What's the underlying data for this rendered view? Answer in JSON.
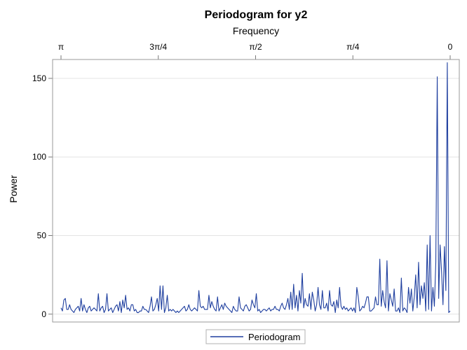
{
  "chart_data": {
    "type": "line",
    "title": "Periodogram for y2",
    "xlabel": "Frequency",
    "ylabel": "Power",
    "x_ticks": [
      "π",
      "3π/4",
      "π/2",
      "π/4",
      "0"
    ],
    "x_tick_values": [
      3.14159,
      2.35619,
      1.5708,
      0.7854,
      0
    ],
    "xlim": [
      3.14159,
      0
    ],
    "y_ticks": [
      0,
      50,
      100,
      150
    ],
    "ylim": [
      -5,
      162
    ],
    "x_axis_position": "top",
    "grid": "horizontal",
    "legend_position": "bottom-center",
    "series": [
      {
        "name": "Periodogram",
        "color": "#1f3f9f",
        "values": [
          4,
          2,
          9,
          10,
          3,
          3,
          6,
          3,
          2,
          1,
          3,
          4,
          5,
          2,
          10,
          2,
          6,
          3,
          1,
          4,
          5,
          2,
          3,
          4,
          3,
          2,
          13,
          2,
          4,
          5,
          1,
          3,
          13,
          2,
          3,
          4,
          1,
          3,
          5,
          6,
          2,
          8,
          1,
          9,
          4,
          12,
          3,
          4,
          2,
          6,
          6,
          2,
          3,
          1,
          1,
          2,
          2,
          5,
          3,
          3,
          2,
          1,
          5,
          11,
          2,
          3,
          6,
          10,
          2,
          18,
          3,
          18,
          1,
          4,
          12,
          2,
          3,
          2,
          3,
          2,
          1,
          2,
          1,
          2,
          3,
          4,
          5,
          2,
          3,
          6,
          3,
          2,
          3,
          4,
          3,
          2,
          15,
          5,
          4,
          5,
          3,
          3,
          3,
          12,
          4,
          8,
          5,
          3,
          2,
          11,
          2,
          4,
          6,
          3,
          7,
          5,
          4,
          3,
          2,
          1,
          5,
          3,
          2,
          2,
          11,
          4,
          3,
          2,
          5,
          6,
          4,
          2,
          3,
          9,
          6,
          4,
          13,
          2,
          3,
          1,
          2,
          3,
          3,
          2,
          3,
          4,
          2,
          3,
          3,
          5,
          3,
          3,
          2,
          5,
          7,
          4,
          3,
          6,
          10,
          3,
          14,
          3,
          19,
          4,
          12,
          2,
          15,
          7,
          26,
          4,
          10,
          6,
          5,
          13,
          3,
          14,
          9,
          2,
          6,
          17,
          6,
          3,
          15,
          4,
          4,
          7,
          2,
          15,
          6,
          5,
          8,
          1,
          9,
          4,
          17,
          5,
          3,
          5,
          3,
          4,
          2,
          3,
          4,
          2,
          4,
          1,
          17,
          11,
          2,
          3,
          5,
          4,
          7,
          11,
          11,
          2,
          2,
          3,
          4,
          11,
          6,
          6,
          35,
          5,
          15,
          8,
          4,
          34,
          2,
          13,
          9,
          5,
          16,
          2,
          2,
          4,
          1,
          23,
          2,
          4,
          3,
          1,
          17,
          7,
          16,
          2,
          11,
          25,
          4,
          33,
          6,
          18,
          10,
          20,
          2,
          44,
          3,
          50,
          2,
          17,
          5,
          33,
          151,
          10,
          44,
          27,
          6,
          43,
          15,
          160,
          1,
          2
        ]
      }
    ]
  }
}
